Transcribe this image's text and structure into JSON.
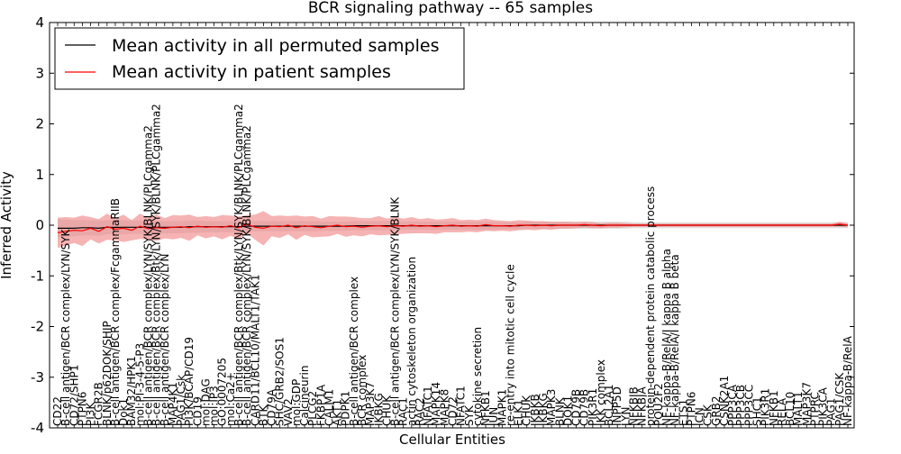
{
  "chart_data": {
    "type": "line",
    "title": "BCR signaling pathway -- 65 samples",
    "xlabel": "Cellular Entities",
    "ylabel": "Inferred Activity",
    "ylim": [
      -4,
      4
    ],
    "yticks": [
      -4,
      -3,
      -2,
      -1,
      0,
      1,
      2,
      3,
      4
    ],
    "grid": false,
    "legend_position": "top-left",
    "colors": {
      "permuted_line": "#000000",
      "patient_line": "#ff0000",
      "permuted_band": "#c8c8c8",
      "patient_band": "#f08080"
    },
    "categories": [
      "CD22",
      "B-cell antigen/BCR complex/LYN/SYK",
      "CD72/SHP1",
      "PTPN6",
      "PI3K",
      "FCGR2B",
      "BLNK/p62DOK/SHIP",
      "B-cell antigen/BCR complex/FcgammaRIIB",
      "Dok1",
      "BAM32/HPK1",
      "mol:PI-3-4-5-P3",
      "B-cell antigen/BCR complex/LYN/SYK/BLNK/PLCgamma2",
      "B-cell antigen/BCR complex/Btk/LYN/SYK/BLNK/PLCgamma2",
      "B-cell antigen/BCR complex/LYN",
      "MAP4K1",
      "PAG1/Csk",
      "PI3K/BCAP/CD19",
      "CD19",
      "mol:DAG",
      "mol:IP3",
      "GO:0007205",
      "mol:Ca2+",
      "B-cell antigen/BCR complex/Btk/LYN/SYK/BLNK/PLCgamma2",
      "B-cell antigen/BCR complex/LYN/SYK/BLNK/PLCgamma2",
      "CARD11/BCL10/MALT1/TAK1",
      "BTK",
      "CD79A",
      "SHC/GRB2/SOS1",
      "VAV2",
      "mol:GDP",
      "Calcineurin",
      "PLCG2",
      "FKBP1A",
      "CALM1",
      "AKT1",
      "PDPK1",
      "B-cell antigen/BCR complex",
      "BCR complex",
      "MAP3K7",
      "IKBKG",
      "CHUK",
      "B-cell antigen/BCR complex/LYN/SYK/BLNK",
      "RAC1",
      "actin cytoskeleton organization",
      "RAC2",
      "NFATC1",
      "MAPK14",
      "MAPK8",
      "CD72",
      "NFATC1",
      "SYK",
      "cytokine secretion",
      "NFKB1",
      "JUN",
      "MAPK1",
      "re-entry into mitotic cell cycle",
      "ELK1",
      "CHUK",
      "IKBKB",
      "IKBKG",
      "MAPK3",
      "BLNK",
      "DOK1",
      "CD79B",
      "CD79B",
      "PIK3R1",
      "IKK complex",
      "BCL2A1",
      "INPP5D",
      "LYN",
      "NFKBIB",
      "NFKBIA",
      "protein-dependent protein catabolic process",
      "POU2F2",
      "NF-kappa-B/RelA/I kappa B alpha",
      "NF-kappa-B/RelA/I kappa B beta",
      "ETS1",
      "PTPN6",
      "ICN",
      "CSK",
      "GRB2",
      "CSNK2A1",
      "PPP3CA",
      "PPP3CB",
      "PPP3CC",
      "SHC1",
      "PIK3R1",
      "NFKB1",
      "RELA",
      "BCL10",
      "MALT1",
      "MAP3K7",
      "PTPRC",
      "PIK3CA",
      "PAG1",
      "PAG1/CSK",
      "NF-kappa-B/RelA"
    ],
    "series": [
      {
        "name": "Mean activity in all permuted samples",
        "values": [
          -0.06,
          -0.06,
          -0.06,
          -0.05,
          -0.05,
          -0.06,
          -0.04,
          -0.04,
          -0.04,
          -0.04,
          -0.04,
          -0.04,
          -0.04,
          -0.04,
          -0.04,
          -0.04,
          -0.03,
          -0.03,
          -0.03,
          -0.03,
          -0.03,
          -0.03,
          -0.03,
          -0.02,
          -0.02,
          -0.02,
          -0.02,
          -0.02,
          -0.02,
          -0.02,
          -0.02,
          -0.02,
          -0.02,
          -0.02,
          -0.02,
          -0.02,
          -0.01,
          -0.01,
          -0.01,
          -0.01,
          -0.01,
          -0.01,
          -0.01,
          -0.01,
          -0.01,
          -0.01,
          -0.01,
          -0.01,
          -0.01,
          -0.01,
          -0.01,
          -0.01,
          -0.01,
          -0.01,
          -0.01,
          -0.01,
          -0.01,
          0.0,
          0.0,
          0.0,
          0.0,
          0.0,
          0.0,
          0.0,
          0.0,
          0.0,
          0.0,
          0.0,
          0.0,
          0.0,
          0.0,
          0.0,
          0.0,
          0.0,
          0.0,
          0.0,
          0.0,
          0.0,
          0.0,
          0.0,
          0.0,
          0.0,
          0.0,
          0.0,
          0.0,
          0.0,
          0.0,
          0.0,
          0.0,
          0.0,
          0.0,
          0.0,
          0.0,
          0.0,
          0.0,
          0.0,
          0.0
        ],
        "band": [
          0.18,
          0.17,
          0.16,
          0.15,
          0.15,
          0.15,
          0.14,
          0.14,
          0.14,
          0.13,
          0.13,
          0.13,
          0.13,
          0.12,
          0.12,
          0.12,
          0.12,
          0.12,
          0.11,
          0.11,
          0.11,
          0.11,
          0.11,
          0.11,
          0.1,
          0.1,
          0.1,
          0.1,
          0.1,
          0.1,
          0.1,
          0.1,
          0.09,
          0.09,
          0.09,
          0.09,
          0.09,
          0.09,
          0.09,
          0.09,
          0.09,
          0.09,
          0.08,
          0.08,
          0.08,
          0.08,
          0.08,
          0.08,
          0.08,
          0.08,
          0.08,
          0.08,
          0.08,
          0.08,
          0.07,
          0.07,
          0.07,
          0.07,
          0.07,
          0.07,
          0.07,
          0.07,
          0.07,
          0.07,
          0.07,
          0.07,
          0.07,
          0.07,
          0.07,
          0.07,
          0.06,
          0.06,
          0.06,
          0.06,
          0.06,
          0.06,
          0.06,
          0.06,
          0.06,
          0.06,
          0.06,
          0.06,
          0.06,
          0.06,
          0.06,
          0.06,
          0.06,
          0.06,
          0.06,
          0.06,
          0.06,
          0.06,
          0.06,
          0.06,
          0.06,
          0.06,
          0.06
        ]
      },
      {
        "name": "Mean activity in patient samples",
        "values": [
          -0.15,
          -0.12,
          -0.1,
          -0.11,
          -0.06,
          -0.12,
          -0.03,
          -0.08,
          -0.06,
          -0.1,
          -0.02,
          -0.07,
          -0.05,
          -0.06,
          -0.04,
          -0.03,
          -0.05,
          -0.02,
          -0.04,
          -0.03,
          -0.04,
          -0.01,
          -0.05,
          0.02,
          -0.04,
          -0.06,
          -0.02,
          -0.03,
          0.0,
          -0.05,
          -0.01,
          -0.03,
          -0.05,
          -0.02,
          0.0,
          -0.03,
          -0.02,
          -0.04,
          -0.02,
          -0.01,
          -0.03,
          -0.01,
          -0.02,
          0.0,
          -0.02,
          -0.01,
          -0.03,
          -0.01,
          0.0,
          -0.02,
          -0.01,
          -0.02,
          0.01,
          -0.01,
          -0.01,
          -0.02,
          0.0,
          0.0,
          -0.01,
          0.0,
          -0.01,
          0.0,
          0.0,
          0.0,
          0.01,
          0.0,
          -0.01,
          0.0,
          0.0,
          0.0,
          0.0,
          0.0,
          0.0,
          0.0,
          0.0,
          0.0,
          0.0,
          0.0,
          0.0,
          0.0,
          0.0,
          0.0,
          0.0,
          0.0,
          0.0,
          0.0,
          0.0,
          0.0,
          0.0,
          0.0,
          0.0,
          0.0,
          0.0,
          0.0,
          0.0,
          0.02,
          0.0
        ],
        "band": [
          0.3,
          0.28,
          0.25,
          0.3,
          0.22,
          0.24,
          0.26,
          0.22,
          0.27,
          0.2,
          0.25,
          0.22,
          0.26,
          0.2,
          0.24,
          0.22,
          0.26,
          0.18,
          0.22,
          0.19,
          0.24,
          0.2,
          0.22,
          0.18,
          0.25,
          0.34,
          0.2,
          0.22,
          0.18,
          0.24,
          0.18,
          0.21,
          0.18,
          0.2,
          0.17,
          0.2,
          0.18,
          0.18,
          0.16,
          0.19,
          0.16,
          0.17,
          0.15,
          0.16,
          0.14,
          0.15,
          0.14,
          0.13,
          0.14,
          0.12,
          0.12,
          0.12,
          0.12,
          0.11,
          0.1,
          0.1,
          0.1,
          0.09,
          0.09,
          0.08,
          0.08,
          0.07,
          0.07,
          0.06,
          0.06,
          0.06,
          0.05,
          0.05,
          0.05,
          0.04,
          0.03,
          0.03,
          0.03,
          0.03,
          0.03,
          0.03,
          0.03,
          0.03,
          0.03,
          0.03,
          0.03,
          0.03,
          0.03,
          0.03,
          0.03,
          0.03,
          0.03,
          0.03,
          0.03,
          0.03,
          0.03,
          0.03,
          0.03,
          0.03,
          0.03,
          0.05,
          0.04
        ]
      }
    ],
    "legend": [
      "Mean activity in all permuted samples",
      "Mean activity in patient samples"
    ]
  }
}
